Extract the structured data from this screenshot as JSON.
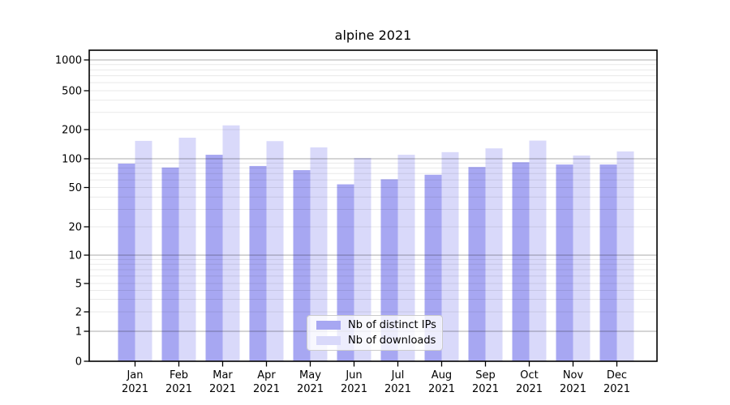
{
  "title": "alpine 2021",
  "chart_data": {
    "type": "bar",
    "title": "alpine 2021",
    "xlabel": "",
    "ylabel": "",
    "year": "2021",
    "categories": [
      "Jan",
      "Feb",
      "Mar",
      "Apr",
      "May",
      "Jun",
      "Jul",
      "Aug",
      "Sep",
      "Oct",
      "Nov",
      "Dec"
    ],
    "series": [
      {
        "name": "Nb of distinct IPs",
        "color": "#a7a7f2",
        "values": [
          89,
          81,
          110,
          84,
          76,
          54,
          61,
          68,
          82,
          92,
          87,
          87
        ]
      },
      {
        "name": "Nb of downloads",
        "color": "#d9d9fa",
        "values": [
          153,
          165,
          221,
          152,
          131,
          102,
          110,
          117,
          128,
          154,
          108,
          119
        ]
      }
    ],
    "yscale": "symlog",
    "y_ticks": [
      0,
      1,
      2,
      5,
      10,
      20,
      50,
      100,
      200,
      500,
      1000
    ],
    "ylim": [
      0,
      1300
    ],
    "grid": "horizontal major+minor",
    "legend_position": "inside lower-center"
  },
  "colors": {
    "background": "#ffffff",
    "spine": "#000000",
    "major_grid": "rgba(0,0,0,0.33)",
    "minor_grid": "rgba(0,0,0,0.085)",
    "tick_text": "#000000"
  }
}
